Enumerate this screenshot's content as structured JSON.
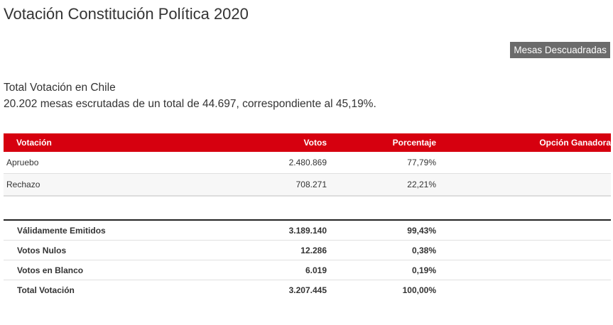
{
  "page": {
    "title": "Votación Constitución Política 2020"
  },
  "toolbar": {
    "mesas_button": "Mesas Descuadradas"
  },
  "summary": {
    "heading": "Total Votación en Chile",
    "detail": "20.202 mesas escrutadas de un total de 44.697, correspondiente al 45,19%."
  },
  "results": {
    "headers": {
      "votacion": "Votación",
      "votos": "Votos",
      "porcentaje": "Porcentaje",
      "ganadora": "Opción Ganadora"
    },
    "rows": [
      {
        "opcion": "Apruebo",
        "votos": "2.480.869",
        "porcentaje": "77,79%",
        "ganadora": ""
      },
      {
        "opcion": "Rechazo",
        "votos": "708.271",
        "porcentaje": "22,21%",
        "ganadora": ""
      }
    ]
  },
  "totals": {
    "rows": [
      {
        "label": "Válidamente Emitidos",
        "votos": "3.189.140",
        "porcentaje": "99,43%"
      },
      {
        "label": "Votos Nulos",
        "votos": "12.286",
        "porcentaje": "0,38%"
      },
      {
        "label": "Votos en Blanco",
        "votos": "6.019",
        "porcentaje": "0,19%"
      },
      {
        "label": "Total Votación",
        "votos": "3.207.445",
        "porcentaje": "100,00%"
      }
    ]
  }
}
